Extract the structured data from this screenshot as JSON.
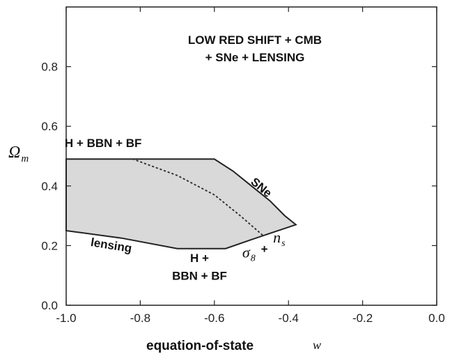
{
  "chart_data": {
    "type": "area",
    "xlabel": "equation-of-state",
    "xlabel_symbol": "w",
    "ylabel": "Ω",
    "ylabel_sub": "m",
    "xlim": [
      -1.0,
      0.0
    ],
    "ylim": [
      0.0,
      1.0
    ],
    "grid": false,
    "x_ticks": [
      -1.0,
      -0.8,
      -0.6,
      -0.4,
      -0.2,
      0.0
    ],
    "x_tick_labels": [
      "-1.0",
      "-0.8",
      "-0.6",
      "-0.4",
      "-0.2",
      "0.0"
    ],
    "y_ticks": [
      0.0,
      0.2,
      0.4,
      0.6,
      0.8
    ],
    "y_tick_labels": [
      "0.0",
      "0.2",
      "0.4",
      "0.6",
      "0.8"
    ],
    "title_lines": [
      "LOW RED SHIFT + CMB",
      "+ SNe + LENSING"
    ],
    "region": {
      "fill": "#d9d9d9",
      "stroke": "#222222",
      "boundary": [
        {
          "x": -1.0,
          "y": 0.49
        },
        {
          "x": -0.6,
          "y": 0.49
        },
        {
          "x": -0.55,
          "y": 0.45
        },
        {
          "x": -0.5,
          "y": 0.4
        },
        {
          "x": -0.45,
          "y": 0.35
        },
        {
          "x": -0.41,
          "y": 0.3
        },
        {
          "x": -0.38,
          "y": 0.27
        },
        {
          "x": -0.44,
          "y": 0.245
        },
        {
          "x": -0.5,
          "y": 0.22
        },
        {
          "x": -0.57,
          "y": 0.19
        },
        {
          "x": -0.7,
          "y": 0.19
        },
        {
          "x": -0.85,
          "y": 0.225
        },
        {
          "x": -1.0,
          "y": 0.25
        }
      ]
    },
    "dotted_curve": [
      {
        "x": -0.82,
        "y": 0.49
      },
      {
        "x": -0.7,
        "y": 0.435
      },
      {
        "x": -0.6,
        "y": 0.37
      },
      {
        "x": -0.53,
        "y": 0.3
      },
      {
        "x": -0.47,
        "y": 0.235
      }
    ],
    "annotations": [
      {
        "text": "H + BBN + BF",
        "x": -0.9,
        "y": 0.53
      },
      {
        "text": "SNe",
        "x": -0.48,
        "y": 0.385,
        "rotate": 40
      },
      {
        "text": "lensing",
        "x": -0.88,
        "y": 0.188,
        "rotate": 9
      },
      {
        "text": "H +",
        "x": -0.64,
        "y": 0.145
      },
      {
        "text": "BBN + BF",
        "x": -0.64,
        "y": 0.085
      },
      {
        "text": "σ",
        "x": -0.507,
        "y": 0.16,
        "sub": "8"
      },
      {
        "text": "+",
        "x": -0.465,
        "y": 0.175
      },
      {
        "text": "n",
        "x": -0.425,
        "y": 0.21,
        "sub": "s"
      }
    ]
  }
}
